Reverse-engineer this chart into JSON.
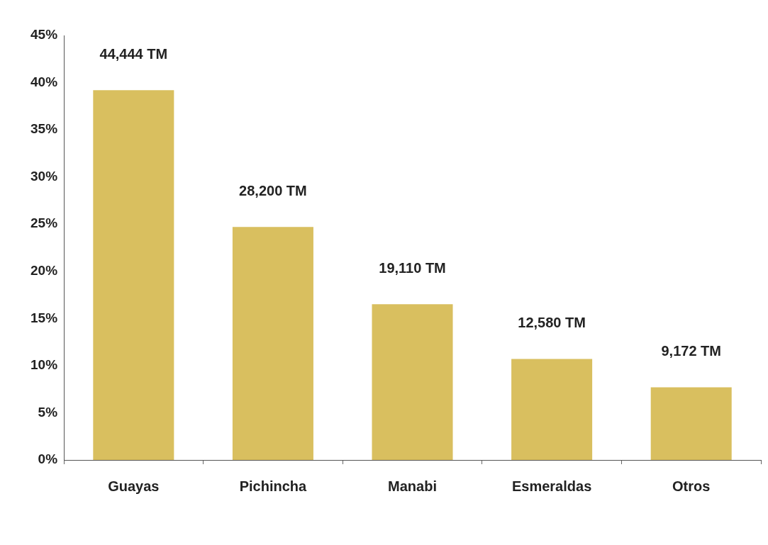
{
  "chart_data": {
    "type": "bar",
    "categories": [
      "Guayas",
      "Pichincha",
      "Manabi",
      "Esmeraldas",
      "Otros"
    ],
    "values": [
      39.2,
      24.7,
      16.5,
      10.7,
      7.7
    ],
    "color": "#d9bf5f",
    "annotations": [
      {
        "text": "44,444 TM",
        "x": "Guayas",
        "y": 39.2
      },
      {
        "text": "28,200 TM",
        "x": "Pichincha",
        "y": 24.7
      },
      {
        "text": "19,110 TM",
        "x": "Manabi",
        "y": 16.5
      },
      {
        "text": "12,580 TM",
        "x": "Esmeraldas",
        "y": 10.7
      },
      {
        "text": "9,172 TM",
        "x": "Otros",
        "y": 7.7
      }
    ],
    "ylim": [
      0,
      45
    ],
    "yticks": [
      {
        "value": 0,
        "label": "0%"
      },
      {
        "value": 5,
        "label": "5%"
      },
      {
        "value": 10,
        "label": "10%"
      },
      {
        "value": 15,
        "label": "15%"
      },
      {
        "value": 20,
        "label": "20%"
      },
      {
        "value": 25,
        "label": "25%"
      },
      {
        "value": 30,
        "label": "30%"
      },
      {
        "value": 35,
        "label": "35%"
      },
      {
        "value": 40,
        "label": "40%"
      },
      {
        "value": 45,
        "label": "45%"
      }
    ],
    "grid": false,
    "legend": false
  }
}
